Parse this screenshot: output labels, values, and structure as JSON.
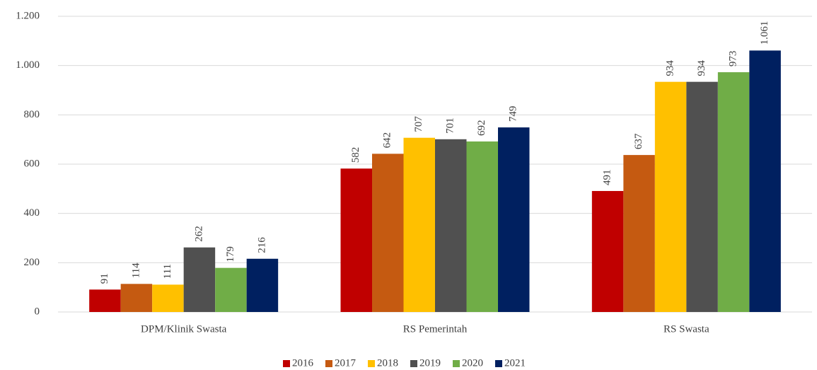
{
  "chart_data": {
    "type": "bar",
    "categories": [
      "DPM/Klinik Swasta",
      "RS Pemerintah",
      "RS Swasta"
    ],
    "series": [
      {
        "name": "2016",
        "color": "#c00000",
        "values": [
          91,
          582,
          491
        ],
        "value_labels": [
          "91",
          "582",
          "491"
        ]
      },
      {
        "name": "2017",
        "color": "#c55a11",
        "values": [
          114,
          642,
          637
        ],
        "value_labels": [
          "114",
          "642",
          "637"
        ]
      },
      {
        "name": "2018",
        "color": "#ffc000",
        "values": [
          111,
          707,
          934
        ],
        "value_labels": [
          "111",
          "707",
          "934"
        ]
      },
      {
        "name": "2019",
        "color": "#505050",
        "values": [
          262,
          701,
          934
        ],
        "value_labels": [
          "262",
          "701",
          "934"
        ]
      },
      {
        "name": "2020",
        "color": "#70ad47",
        "values": [
          179,
          692,
          973
        ],
        "value_labels": [
          "179",
          "692",
          "973"
        ]
      },
      {
        "name": "2021",
        "color": "#002060",
        "values": [
          216,
          749,
          1061
        ],
        "value_labels": [
          "216",
          "749",
          "1.061"
        ]
      }
    ],
    "ylim": [
      0,
      1200
    ],
    "yticks": [
      0,
      200,
      400,
      600,
      800,
      {
        "value": 1000,
        "label": "1.000"
      },
      {
        "value": 1200,
        "label": "1.200"
      }
    ],
    "grid": true,
    "legend": "bottom"
  }
}
